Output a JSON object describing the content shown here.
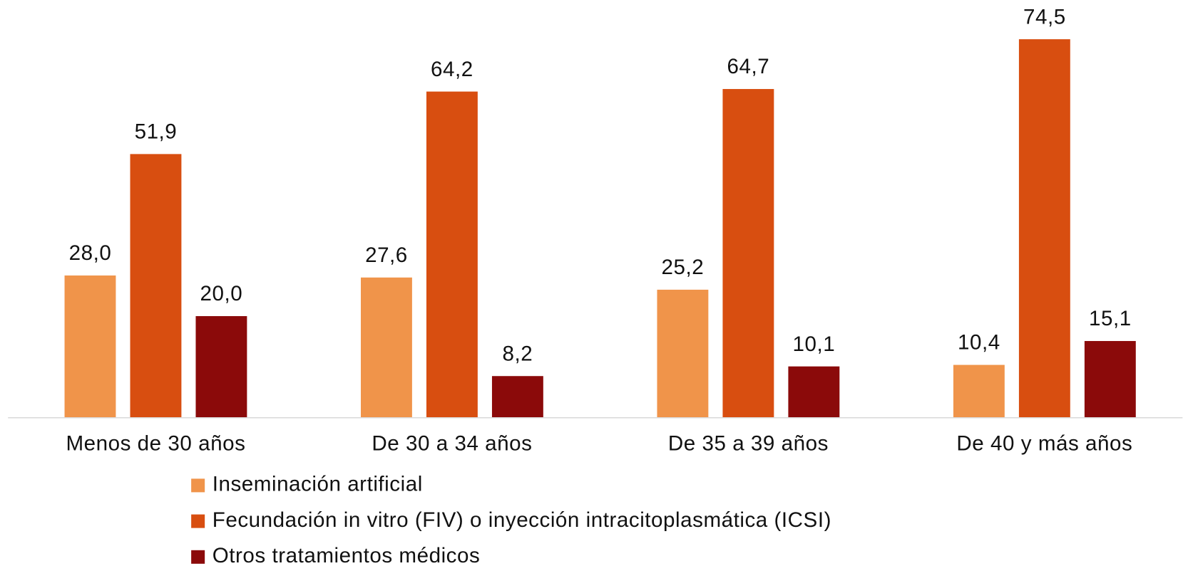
{
  "chart_data": {
    "type": "bar",
    "categories": [
      "Menos de 30 años",
      "De 30 a 34 años",
      "De 35 a 39 años",
      "De 40 y más años"
    ],
    "series": [
      {
        "name": "Inseminación artificial",
        "color": "#f0944a",
        "values": [
          28.0,
          27.6,
          25.2,
          10.4
        ],
        "value_labels": [
          "28,0",
          "27,6",
          "25,2",
          "10,4"
        ]
      },
      {
        "name": "Fecundación in vitro (FIV) o inyección intracitoplasmática (ICSI)",
        "color": "#d84e10",
        "values": [
          51.9,
          64.2,
          64.7,
          74.5
        ],
        "value_labels": [
          "51,9",
          "64,2",
          "64,7",
          "74,5"
        ]
      },
      {
        "name": "Otros tratamientos médicos",
        "color": "#8b0a0a",
        "values": [
          20.0,
          8.2,
          10.1,
          15.1
        ],
        "value_labels": [
          "20,0",
          "8,2",
          "10,1",
          "15,1"
        ]
      }
    ],
    "ylim": [
      0,
      80
    ],
    "legend": "bottom"
  }
}
